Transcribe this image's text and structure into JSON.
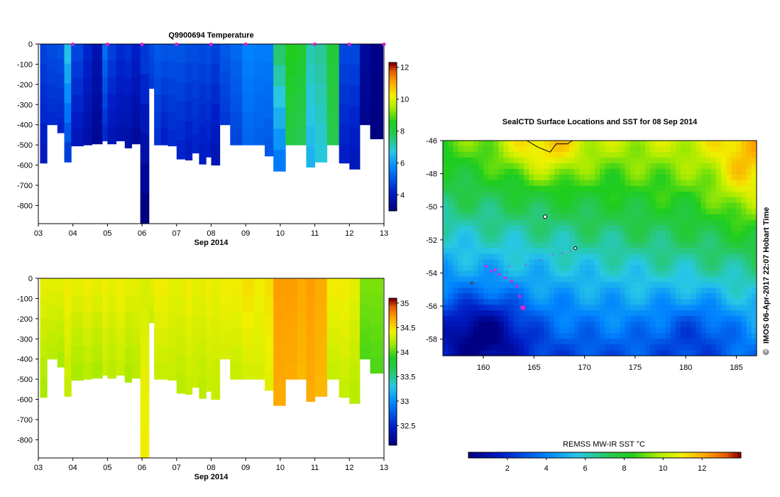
{
  "chart_data": [
    {
      "type": "heatmap",
      "title": "Q9900694  Temperature",
      "xlabel": "Sep 2014",
      "x_ticks": [
        "03",
        "04",
        "05",
        "06",
        "07",
        "08",
        "09",
        "10",
        "11",
        "12",
        "13"
      ],
      "y_ticks": [
        "0",
        "-100",
        "-200",
        "-300",
        "-400",
        "-500",
        "-600",
        "-700",
        "-800"
      ],
      "ylim": [
        -890,
        0
      ],
      "colorbar": {
        "ticks": [
          "4",
          "6",
          "8",
          "10",
          "12"
        ],
        "range": [
          3,
          12.3
        ]
      },
      "profile_markers": [
        "04",
        "05",
        "06",
        "07",
        "08",
        "09",
        "11",
        "12",
        "13"
      ],
      "profiles": [
        {
          "day": 3.05,
          "depth": -590,
          "surface": 4.6,
          "deep": 4.0
        },
        {
          "day": 3.25,
          "depth": -400,
          "surface": 4.8,
          "deep": 4.3
        },
        {
          "day": 3.55,
          "depth": -440,
          "surface": 4.9,
          "deep": 4.2
        },
        {
          "day": 3.75,
          "depth": -585,
          "surface": 6.6,
          "deep": 4.6
        },
        {
          "day": 3.95,
          "depth": -505,
          "surface": 4.7,
          "deep": 3.9
        },
        {
          "day": 4.3,
          "depth": -500,
          "surface": 4.2,
          "deep": 3.6
        },
        {
          "day": 4.55,
          "depth": -495,
          "surface": 3.7,
          "deep": 3.3
        },
        {
          "day": 4.85,
          "depth": -480,
          "surface": 5.3,
          "deep": 4.3
        },
        {
          "day": 5.0,
          "depth": -495,
          "surface": 4.6,
          "deep": 3.8
        },
        {
          "day": 5.25,
          "depth": -480,
          "surface": 4.3,
          "deep": 3.7
        },
        {
          "day": 5.5,
          "depth": -515,
          "surface": 4.4,
          "deep": 3.6
        },
        {
          "day": 5.7,
          "depth": -495,
          "surface": 4.1,
          "deep": 3.4
        },
        {
          "day": 5.95,
          "depth": -890,
          "surface": 4.5,
          "deep": 3.0
        },
        {
          "day": 6.2,
          "depth": -220,
          "surface": 4.8,
          "deep": 4.5
        },
        {
          "day": 6.35,
          "depth": -500,
          "surface": 5.0,
          "deep": 4.4
        },
        {
          "day": 6.55,
          "depth": -500,
          "surface": 4.9,
          "deep": 4.1
        },
        {
          "day": 6.75,
          "depth": -505,
          "surface": 4.9,
          "deep": 4.3
        },
        {
          "day": 7.0,
          "depth": -570,
          "surface": 4.9,
          "deep": 4.2
        },
        {
          "day": 7.25,
          "depth": -575,
          "surface": 4.8,
          "deep": 4.0
        },
        {
          "day": 7.45,
          "depth": -540,
          "surface": 4.8,
          "deep": 4.2
        },
        {
          "day": 7.65,
          "depth": -595,
          "surface": 4.7,
          "deep": 4.0
        },
        {
          "day": 7.85,
          "depth": -560,
          "surface": 4.8,
          "deep": 4.1
        },
        {
          "day": 8.0,
          "depth": -600,
          "surface": 4.6,
          "deep": 3.8
        },
        {
          "day": 8.25,
          "depth": -400,
          "surface": 5.0,
          "deep": 4.5
        },
        {
          "day": 8.55,
          "depth": -500,
          "surface": 5.2,
          "deep": 4.7
        },
        {
          "day": 8.9,
          "depth": -500,
          "surface": 5.6,
          "deep": 5.2
        },
        {
          "day": 9.25,
          "depth": -500,
          "surface": 5.5,
          "deep": 5.1
        },
        {
          "day": 9.55,
          "depth": -555,
          "surface": 5.5,
          "deep": 5.0
        },
        {
          "day": 9.8,
          "depth": -630,
          "surface": 7.6,
          "deep": 5.5
        },
        {
          "day": 10.15,
          "depth": -500,
          "surface": 8.6,
          "deep": 8.0
        },
        {
          "day": 10.5,
          "depth": -500,
          "surface": 8.3,
          "deep": 7.8
        },
        {
          "day": 10.75,
          "depth": -610,
          "surface": 7.1,
          "deep": 6.4
        },
        {
          "day": 11.0,
          "depth": -585,
          "surface": 7.3,
          "deep": 6.8
        },
        {
          "day": 11.35,
          "depth": -500,
          "surface": 8.2,
          "deep": 7.9
        },
        {
          "day": 11.7,
          "depth": -590,
          "surface": 4.7,
          "deep": 4.1
        },
        {
          "day": 12.0,
          "depth": -620,
          "surface": 4.7,
          "deep": 3.9
        },
        {
          "day": 12.3,
          "depth": -400,
          "surface": 3.4,
          "deep": 3.2
        },
        {
          "day": 12.6,
          "depth": -470,
          "surface": 3.1,
          "deep": 3.0
        }
      ]
    },
    {
      "type": "heatmap",
      "xlabel": "Sep 2014",
      "x_ticks": [
        "03",
        "04",
        "05",
        "06",
        "07",
        "08",
        "09",
        "10",
        "11",
        "12",
        "13"
      ],
      "y_ticks": [
        "0",
        "-100",
        "-200",
        "-300",
        "-400",
        "-500",
        "-600",
        "-700",
        "-800"
      ],
      "ylim": [
        -890,
        0
      ],
      "colorbar": {
        "ticks": [
          "32.5",
          "33",
          "33.5",
          "34",
          "34.5",
          "35"
        ],
        "range": [
          32.1,
          35.1
        ]
      },
      "profiles": [
        {
          "day": 3.05,
          "depth": -590,
          "surface": 34.4,
          "deep": 34.2
        },
        {
          "day": 3.25,
          "depth": -400,
          "surface": 34.4,
          "deep": 34.25
        },
        {
          "day": 3.55,
          "depth": -440,
          "surface": 34.4,
          "deep": 34.2
        },
        {
          "day": 3.75,
          "depth": -585,
          "surface": 34.45,
          "deep": 34.3
        },
        {
          "day": 3.95,
          "depth": -505,
          "surface": 34.4,
          "deep": 34.2
        },
        {
          "day": 4.3,
          "depth": -500,
          "surface": 34.45,
          "deep": 34.25
        },
        {
          "day": 4.55,
          "depth": -495,
          "surface": 34.4,
          "deep": 34.2
        },
        {
          "day": 4.85,
          "depth": -480,
          "surface": 34.45,
          "deep": 34.3
        },
        {
          "day": 5.0,
          "depth": -495,
          "surface": 34.4,
          "deep": 34.25
        },
        {
          "day": 5.25,
          "depth": -480,
          "surface": 34.45,
          "deep": 34.3
        },
        {
          "day": 5.5,
          "depth": -515,
          "surface": 34.4,
          "deep": 34.2
        },
        {
          "day": 5.7,
          "depth": -495,
          "surface": 34.4,
          "deep": 34.25
        },
        {
          "day": 5.95,
          "depth": -890,
          "surface": 34.35,
          "deep": 34.45
        },
        {
          "day": 6.2,
          "depth": -220,
          "surface": 34.4,
          "deep": 34.3
        },
        {
          "day": 6.35,
          "depth": -500,
          "surface": 34.45,
          "deep": 34.3
        },
        {
          "day": 6.55,
          "depth": -500,
          "surface": 34.45,
          "deep": 34.3
        },
        {
          "day": 6.75,
          "depth": -505,
          "surface": 34.4,
          "deep": 34.3
        },
        {
          "day": 7.0,
          "depth": -570,
          "surface": 34.4,
          "deep": 34.25
        },
        {
          "day": 7.25,
          "depth": -575,
          "surface": 34.45,
          "deep": 34.3
        },
        {
          "day": 7.45,
          "depth": -540,
          "surface": 34.4,
          "deep": 34.3
        },
        {
          "day": 7.65,
          "depth": -595,
          "surface": 34.4,
          "deep": 34.25
        },
        {
          "day": 7.85,
          "depth": -560,
          "surface": 34.45,
          "deep": 34.3
        },
        {
          "day": 8.0,
          "depth": -600,
          "surface": 34.4,
          "deep": 34.3
        },
        {
          "day": 8.25,
          "depth": -400,
          "surface": 34.45,
          "deep": 34.35
        },
        {
          "day": 8.55,
          "depth": -500,
          "surface": 34.45,
          "deep": 34.3
        },
        {
          "day": 8.9,
          "depth": -500,
          "surface": 34.5,
          "deep": 34.35
        },
        {
          "day": 9.25,
          "depth": -500,
          "surface": 34.45,
          "deep": 34.35
        },
        {
          "day": 9.55,
          "depth": -555,
          "surface": 34.5,
          "deep": 34.4
        },
        {
          "day": 9.8,
          "depth": -630,
          "surface": 34.75,
          "deep": 34.7
        },
        {
          "day": 10.15,
          "depth": -500,
          "surface": 34.75,
          "deep": 34.7
        },
        {
          "day": 10.5,
          "depth": -500,
          "surface": 34.7,
          "deep": 34.65
        },
        {
          "day": 10.75,
          "depth": -610,
          "surface": 34.75,
          "deep": 34.7
        },
        {
          "day": 11.0,
          "depth": -585,
          "surface": 34.7,
          "deep": 34.65
        },
        {
          "day": 11.35,
          "depth": -500,
          "surface": 34.45,
          "deep": 34.3
        },
        {
          "day": 11.7,
          "depth": -590,
          "surface": 34.45,
          "deep": 34.3
        },
        {
          "day": 12.0,
          "depth": -620,
          "surface": 34.4,
          "deep": 34.25
        },
        {
          "day": 12.3,
          "depth": -400,
          "surface": 34.1,
          "deep": 34.0
        },
        {
          "day": 12.6,
          "depth": -470,
          "surface": 34.1,
          "deep": 34.0
        }
      ]
    },
    {
      "type": "heatmap",
      "title": "SealCTD Surface Locations and SST for 08 Sep 2014",
      "x_ticks": [
        "160",
        "165",
        "170",
        "175",
        "180",
        "185"
      ],
      "y_ticks": [
        "-46",
        "-48",
        "-50",
        "-52",
        "-54",
        "-56",
        "-58"
      ],
      "xlim": [
        156,
        187
      ],
      "ylim": [
        -59,
        -46
      ],
      "colorbar": {
        "label": "REMSS MW-IR SST °C",
        "ticks": [
          "2",
          "4",
          "6",
          "8",
          "10",
          "12"
        ],
        "range": [
          0,
          14
        ]
      },
      "seal_track": [
        [
          160.3,
          -53.6
        ],
        [
          160.8,
          -53.9
        ],
        [
          161.2,
          -53.8
        ],
        [
          161.6,
          -54.1
        ],
        [
          162.2,
          -54.3
        ],
        [
          162.8,
          -54.5
        ],
        [
          163.3,
          -54.8
        ],
        [
          163.6,
          -55.4
        ],
        [
          163.9,
          -56.1
        ],
        [
          162.6,
          -53.6
        ],
        [
          164.2,
          -53.5
        ],
        [
          165.6,
          -53.2
        ],
        [
          166.8,
          -52.9
        ],
        [
          167.8,
          -52.8
        ],
        [
          168.6,
          -52.7
        ]
      ],
      "credit": "IMOS 06-Apr-2017 22:07 Hobart Time",
      "copyright_symbol": "©"
    }
  ]
}
